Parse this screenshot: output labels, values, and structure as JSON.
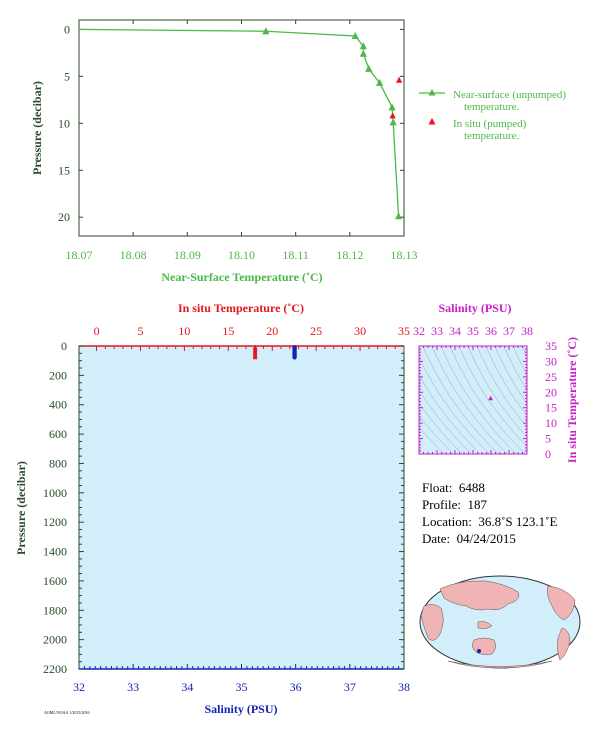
{
  "colors": {
    "green": "#4cb848",
    "red": "#e8141e",
    "magenta": "#c81ec8",
    "blue": "#1423b4",
    "darkgreen": "#2a4a2a",
    "panel": "#d2eefa",
    "land": "#f0b4b4",
    "ocean": "#d2eefa"
  },
  "chart_data": [
    {
      "type": "line",
      "xlabel": "Near-Surface Temperature (˚C)",
      "ylabel": "Pressure (decibar)",
      "xlim": [
        18.07,
        18.13
      ],
      "ylim": [
        22,
        -1
      ],
      "x_ticks": [
        "18.07",
        "18.08",
        "18.09",
        "18.10",
        "18.11",
        "18.12",
        "18.13"
      ],
      "y_ticks": [
        "0",
        "5",
        "10",
        "15",
        "20"
      ],
      "series": [
        {
          "name": "Near-surface (unpumped) temperature.",
          "marker": "triangle",
          "points": [
            {
              "x": 18.07,
              "y": 0.0
            },
            {
              "x": 18.1045,
              "y": 0.2
            },
            {
              "x": 18.121,
              "y": 0.7
            },
            {
              "x": 18.1225,
              "y": 1.8
            },
            {
              "x": 18.1225,
              "y": 2.6
            },
            {
              "x": 18.1235,
              "y": 4.2
            },
            {
              "x": 18.1255,
              "y": 5.7
            },
            {
              "x": 18.1278,
              "y": 8.3
            },
            {
              "x": 18.128,
              "y": 9.9
            },
            {
              "x": 18.129,
              "y": 19.9
            }
          ]
        },
        {
          "name": "In situ (pumped) temperature.",
          "marker": "triangle",
          "points": [
            {
              "x": 18.1279,
              "y": 9.2
            },
            {
              "x": 18.1291,
              "y": 5.4
            }
          ]
        }
      ]
    },
    {
      "type": "scatter",
      "top_axis_label": "In situ Temperature (˚C)",
      "bottom_axis_label": "Salinity (PSU)",
      "ylabel": "Pressure (decibar)",
      "temperature_lim": [
        -2,
        35
      ],
      "salinity_lim": [
        32,
        38
      ],
      "pressure_lim": [
        0,
        2200
      ],
      "temperature_ticks": [
        "0",
        "5",
        "10",
        "15",
        "20",
        "25",
        "30",
        "35"
      ],
      "salinity_ticks": [
        "32",
        "33",
        "34",
        "35",
        "36",
        "37",
        "38"
      ],
      "pressure_ticks": [
        "0",
        "200",
        "400",
        "600",
        "800",
        "1000",
        "1200",
        "1400",
        "1600",
        "1800",
        "2000",
        "2200"
      ],
      "temperature_profile": [
        {
          "t": 18.05,
          "p": 2
        },
        {
          "t": 18.05,
          "p": 10
        },
        {
          "t": 18.05,
          "p": 20
        },
        {
          "t": 18.05,
          "p": 30
        },
        {
          "t": 18.05,
          "p": 40
        },
        {
          "t": 18.05,
          "p": 50
        },
        {
          "t": 18.05,
          "p": 60
        },
        {
          "t": 18.05,
          "p": 70
        }
      ],
      "salinity_profile": [
        {
          "s": 35.98,
          "p": 2
        },
        {
          "s": 35.98,
          "p": 10
        },
        {
          "s": 35.98,
          "p": 20
        },
        {
          "s": 35.98,
          "p": 30
        },
        {
          "s": 35.98,
          "p": 40
        },
        {
          "s": 35.98,
          "p": 50
        },
        {
          "s": 35.98,
          "p": 60
        },
        {
          "s": 35.98,
          "p": 70
        }
      ]
    },
    {
      "type": "scatter",
      "title": "Salinity (PSU)",
      "ylabel": "In situ Temperature (˚C)",
      "xlim": [
        32,
        38
      ],
      "ylim": [
        0,
        35
      ],
      "x_ticks": [
        "32",
        "33",
        "34",
        "35",
        "36",
        "37",
        "38"
      ],
      "y_ticks": [
        "0",
        "5",
        "10",
        "15",
        "20",
        "25",
        "30",
        "35"
      ],
      "points": [
        {
          "s": 35.98,
          "t": 18.05
        }
      ]
    }
  ],
  "info": {
    "float_label": "Float:",
    "float_value": "6488",
    "profile_label": "Profile:",
    "profile_value": "187",
    "location_label": "Location:",
    "location_value": "36.8˚S  123.1˚E",
    "date_label": "Date:",
    "date_value": "04/24/2015"
  },
  "map": {
    "float_position": {
      "lat": -36.8,
      "lon": 123.1
    }
  },
  "legend": {
    "unpumped_line1": "Near-surface (unpumped)",
    "unpumped_line2": "temperature.",
    "pumped_line1": "In situ (pumped)",
    "pumped_line2": "temperature."
  },
  "footer": {
    "stamp": "AOML/NOAA  1/2015/2016"
  }
}
